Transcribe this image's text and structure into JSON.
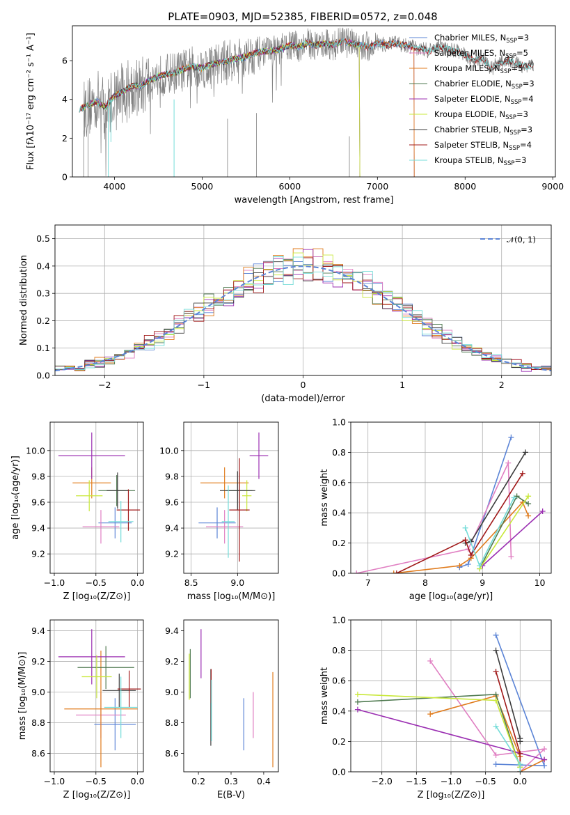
{
  "colors": {
    "Chabrier MILES": "#5b84d6",
    "Salpeter MILES": "#e07fc2",
    "Kroupa MILES": "#e07b1c",
    "Chabrier ELODIE": "#4f7a50",
    "Salpeter ELODIE": "#9b2fb2",
    "Kroupa ELODIE": "#c9e83a",
    "Chabrier STELIB": "#3c3c3c",
    "Salpeter STELIB": "#a01818",
    "Kroupa STELIB": "#74dcd8"
  },
  "chart_data": [
    {
      "type": "line",
      "title": "PLATE=0903, MJD=52385, FIBERID=0572, z=0.048",
      "xlabel": "wavelength [Angstrom, rest frame]",
      "ylabel": "Flux [fλ10⁻¹⁷ erg cm⁻² s⁻¹ A⁻¹]",
      "xlim": [
        3520,
        9030
      ],
      "ylim": [
        0,
        7.8
      ],
      "xticks": [
        4000,
        5000,
        6000,
        7000,
        8000,
        9000
      ],
      "yticks": [
        0,
        2,
        4,
        6
      ],
      "grid": false,
      "legend_position": "top-right",
      "observed_spectrum": {
        "color": "#808080",
        "x": [
          3650,
          3700,
          3750,
          3800,
          3850,
          3900,
          3950,
          4000,
          4100,
          4200,
          4300,
          4400,
          4500,
          4600,
          4700,
          4800,
          4900,
          5000,
          5100,
          5200,
          5300,
          5400,
          5500,
          5600,
          5700,
          5800,
          5900,
          6000,
          6100,
          6200,
          6300,
          6400,
          6500,
          6600,
          6700,
          6800,
          6900,
          7000,
          7100,
          7200,
          7300,
          7400,
          7500,
          7600,
          7700,
          7800,
          7900,
          8000,
          8100,
          8200,
          8300,
          8400,
          8500,
          8600,
          8700,
          8780
        ],
        "y": [
          3.5,
          3.6,
          3.8,
          3.9,
          4.0,
          3.3,
          3.9,
          4.2,
          4.4,
          4.7,
          4.6,
          5.0,
          5.2,
          5.3,
          5.4,
          5.5,
          5.7,
          5.6,
          5.8,
          5.9,
          6.0,
          6.1,
          6.2,
          6.4,
          6.5,
          6.5,
          6.6,
          6.8,
          6.7,
          6.9,
          6.8,
          6.9,
          6.8,
          7.0,
          6.9,
          6.8,
          6.7,
          6.9,
          6.8,
          6.9,
          6.8,
          6.7,
          6.6,
          6.5,
          6.7,
          6.6,
          6.5,
          6.3,
          6.0,
          6.1,
          5.6,
          5.9,
          6.0,
          5.8,
          5.7,
          5.8
        ]
      },
      "model": {
        "x": [
          3600,
          3700,
          3800,
          3900,
          4000,
          4100,
          4200,
          4300,
          4400,
          4500,
          4600,
          4700,
          4800,
          4900,
          5000,
          5100,
          5200,
          5300,
          5400,
          5500,
          5600,
          5700,
          5800,
          5900,
          6000,
          6100,
          6200,
          6300,
          6400,
          6500,
          6600,
          6700,
          6800,
          6900,
          7000,
          7100,
          7200,
          7300,
          7400
        ],
        "y": [
          3.5,
          3.7,
          3.9,
          3.6,
          4.2,
          4.4,
          4.7,
          4.7,
          5.0,
          5.2,
          5.3,
          5.4,
          5.6,
          5.7,
          5.6,
          5.8,
          5.9,
          6.0,
          6.1,
          6.2,
          6.4,
          6.5,
          6.5,
          6.6,
          6.8,
          6.7,
          6.9,
          6.8,
          6.9,
          6.8,
          7.0,
          6.9,
          6.8,
          6.7,
          6.9,
          6.8,
          6.9,
          6.8,
          6.7
        ]
      },
      "series": [
        {
          "name": "Chabrier MILES",
          "label": "Chabrier MILES, N",
          "sub": "SSP",
          "suffix": "=3",
          "end": 7420
        },
        {
          "name": "Salpeter MILES",
          "label": "Salpeter MILES, N",
          "sub": "SSP",
          "suffix": "=5",
          "end": 7420
        },
        {
          "name": "Kroupa MILES",
          "label": "Kroupa MILES, N",
          "sub": "SSP",
          "suffix": "=5",
          "end": 7420
        },
        {
          "name": "Chabrier ELODIE",
          "label": "Chabrier ELODIE, N",
          "sub": "SSP",
          "suffix": "=3",
          "end": 6800
        },
        {
          "name": "Salpeter ELODIE",
          "label": "Salpeter ELODIE, N",
          "sub": "SSP",
          "suffix": "=4",
          "end": 6800
        },
        {
          "name": "Kroupa ELODIE",
          "label": "Kroupa ELODIE, N",
          "sub": "SSP",
          "suffix": "=3",
          "end": 6800
        },
        {
          "name": "Chabrier STELIB",
          "label": "Chabrier STELIB, N",
          "sub": "SSP",
          "suffix": "=3",
          "end": 8780
        },
        {
          "name": "Salpeter STELIB",
          "label": "Salpeter STELIB, N",
          "sub": "SSP",
          "suffix": "=4",
          "end": 8780
        },
        {
          "name": "Kroupa STELIB",
          "label": "Kroupa STELIB, N",
          "sub": "SSP",
          "suffix": "=3",
          "end": 8780
        }
      ]
    },
    {
      "type": "line",
      "xlabel": "(data-model)/error",
      "ylabel": "Normed distribution",
      "xlim": [
        -2.5,
        2.5
      ],
      "ylim": [
        0,
        0.55
      ],
      "xticks": [
        -2,
        -1,
        0,
        1,
        2
      ],
      "yticks": [
        0.0,
        0.1,
        0.2,
        0.3,
        0.4,
        0.5
      ],
      "grid": true,
      "legend_position": "top-right",
      "reference_curve": {
        "name": "𝒩(0, 1)",
        "color": "#5b84d6",
        "style": "dashed"
      },
      "histogram_bins": {
        "start": -2.5,
        "width": 0.1,
        "count": 50
      }
    },
    {
      "type": "scatter",
      "xlabel": "Z [log₁₀(Z/Z⊙)]",
      "ylabel": "age  [log₁₀(age/yr)]",
      "xlim": [
        -1.05,
        0.07
      ],
      "ylim": [
        9.05,
        10.22
      ],
      "xticks": [
        -1.0,
        -0.5,
        0.0
      ],
      "yticks": [
        9.2,
        9.4,
        9.6,
        9.8,
        10.0
      ],
      "grid": true,
      "points": [
        {
          "series": "Chabrier MILES",
          "x": -0.27,
          "xerr": 0.2,
          "y": 9.44,
          "yerr": 0.12
        },
        {
          "series": "Salpeter MILES",
          "x": -0.44,
          "xerr": 0.22,
          "y": 9.41,
          "yerr": 0.13
        },
        {
          "series": "Kroupa MILES",
          "x": -0.55,
          "xerr": 0.23,
          "y": 9.75,
          "yerr": 0.12
        },
        {
          "series": "Chabrier ELODIE",
          "x": -0.25,
          "xerr": 0.22,
          "y": 9.69,
          "yerr": 0.12
        },
        {
          "series": "Salpeter ELODIE",
          "x": -0.55,
          "xerr": 0.4,
          "y": 9.96,
          "yerr": 0.18
        },
        {
          "series": "Kroupa ELODIE",
          "x": -0.58,
          "xerr": 0.16,
          "y": 9.65,
          "yerr": 0.12
        },
        {
          "series": "Chabrier STELIB",
          "x": -0.24,
          "xerr": 0.13,
          "y": 9.69,
          "yerr": 0.14
        },
        {
          "series": "Salpeter STELIB",
          "x": -0.11,
          "xerr": 0.14,
          "y": 9.54,
          "yerr": 0.16
        },
        {
          "series": "Kroupa STELIB",
          "x": -0.2,
          "xerr": 0.15,
          "y": 9.45,
          "yerr": 0.16
        }
      ]
    },
    {
      "type": "scatter",
      "xlabel": "mass [log₁₀(M/M⊙)]",
      "ylabel": "",
      "xlim": [
        8.42,
        9.44
      ],
      "ylim": [
        9.05,
        10.22
      ],
      "xticks": [
        8.5,
        9.0
      ],
      "yticks": [
        9.2,
        9.4,
        9.6,
        9.8,
        10.0
      ],
      "grid": true,
      "points": [
        {
          "series": "Chabrier MILES",
          "x": 8.78,
          "xerr": 0.2,
          "y": 9.44,
          "yerr": 0.12
        },
        {
          "series": "Salpeter MILES",
          "x": 8.86,
          "xerr": 0.2,
          "y": 9.41,
          "yerr": 0.13
        },
        {
          "series": "Kroupa MILES",
          "x": 8.86,
          "xerr": 0.26,
          "y": 9.75,
          "yerr": 0.12
        },
        {
          "series": "Chabrier ELODIE",
          "x": 9.02,
          "xerr": 0.14,
          "y": 9.69,
          "yerr": 0.14
        },
        {
          "series": "Salpeter ELODIE",
          "x": 9.23,
          "xerr": 0.1,
          "y": 9.96,
          "yerr": 0.18
        },
        {
          "series": "Kroupa ELODIE",
          "x": 9.1,
          "xerr": 0.05,
          "y": 9.65,
          "yerr": 0.12
        },
        {
          "series": "Chabrier STELIB",
          "x": 9.0,
          "xerr": 0.19,
          "y": 9.69,
          "yerr": 0.15
        },
        {
          "series": "Salpeter STELIB",
          "x": 9.02,
          "xerr": 0.11,
          "y": 9.54,
          "yerr": 0.4
        },
        {
          "series": "Kroupa STELIB",
          "x": 8.9,
          "xerr": 0.07,
          "y": 9.45,
          "yerr": 0.28
        }
      ]
    },
    {
      "type": "line",
      "xlabel": "age  [log₁₀(age/yr)]",
      "ylabel": "mass weight",
      "xlim": [
        6.7,
        10.2
      ],
      "ylim": [
        0,
        1.0
      ],
      "xticks": [
        7,
        8,
        9,
        10
      ],
      "yticks": [
        0.0,
        0.2,
        0.4,
        0.6,
        0.8,
        1.0
      ],
      "grid": true,
      "series": [
        {
          "name": "Chabrier MILES",
          "x": [
            8.6,
            8.75,
            9.5
          ],
          "y": [
            0.04,
            0.06,
            0.9
          ]
        },
        {
          "name": "Salpeter MILES",
          "x": [
            6.8,
            8.75,
            9.45,
            9.5
          ],
          "y": [
            0.0,
            0.16,
            0.73,
            0.11
          ]
        },
        {
          "name": "Kroupa MILES",
          "x": [
            7.45,
            8.6,
            8.8,
            9.7,
            9.8
          ],
          "y": [
            0.0,
            0.05,
            0.1,
            0.47,
            0.38
          ]
        },
        {
          "name": "Chabrier ELODIE",
          "x": [
            8.95,
            9.6,
            9.8
          ],
          "y": [
            0.03,
            0.51,
            0.46
          ]
        },
        {
          "name": "Salpeter ELODIE",
          "x": [
            9.0,
            10.05
          ],
          "y": [
            0.05,
            0.41
          ]
        },
        {
          "name": "Kroupa ELODIE",
          "x": [
            8.95,
            9.8
          ],
          "y": [
            0.03,
            0.51
          ]
        },
        {
          "name": "Chabrier STELIB",
          "x": [
            8.7,
            8.8,
            9.75
          ],
          "y": [
            0.2,
            0.21,
            0.8
          ]
        },
        {
          "name": "Salpeter STELIB",
          "x": [
            7.5,
            8.7,
            8.8,
            9.7
          ],
          "y": [
            0.0,
            0.22,
            0.12,
            0.66
          ]
        },
        {
          "name": "Kroupa STELIB",
          "x": [
            8.7,
            8.95,
            9.55
          ],
          "y": [
            0.3,
            0.05,
            0.5
          ]
        }
      ]
    },
    {
      "type": "scatter",
      "xlabel": "Z [log₁₀(Z/Z⊙)]",
      "ylabel": "mass [log₁₀(M/M⊙)]",
      "xlim": [
        -1.05,
        0.07
      ],
      "ylim": [
        8.48,
        9.47
      ],
      "xticks": [
        -1.0,
        -0.5,
        0.0
      ],
      "yticks": [
        8.6,
        8.8,
        9.0,
        9.2,
        9.4
      ],
      "grid": true,
      "points": [
        {
          "series": "Chabrier MILES",
          "x": -0.27,
          "xerr": 0.25,
          "y": 8.79,
          "yerr": 0.17
        },
        {
          "series": "Salpeter MILES",
          "x": -0.44,
          "xerr": 0.3,
          "y": 8.85,
          "yerr": 0.15
        },
        {
          "series": "Kroupa MILES",
          "x": -0.44,
          "xerr": 0.44,
          "y": 8.89,
          "yerr": 0.38
        },
        {
          "series": "Chabrier ELODIE",
          "x": -0.38,
          "xerr": 0.34,
          "y": 9.16,
          "yerr": 0.14
        },
        {
          "series": "Salpeter ELODIE",
          "x": -0.55,
          "xerr": 0.4,
          "y": 9.23,
          "yerr": 0.18
        },
        {
          "series": "Kroupa ELODIE",
          "x": -0.49,
          "xerr": 0.18,
          "y": 9.1,
          "yerr": 0.14
        },
        {
          "series": "Chabrier STELIB",
          "x": -0.22,
          "xerr": 0.2,
          "y": 9.01,
          "yerr": 0.11
        },
        {
          "series": "Salpeter STELIB",
          "x": -0.1,
          "xerr": 0.14,
          "y": 9.02,
          "yerr": 0.12
        },
        {
          "series": "Kroupa STELIB",
          "x": -0.2,
          "xerr": 0.2,
          "y": 8.9,
          "yerr": 0.2
        }
      ]
    },
    {
      "type": "scatter",
      "xlabel": "E(B-V)",
      "ylabel": "",
      "xlim": [
        0.155,
        0.445
      ],
      "ylim": [
        8.48,
        9.47
      ],
      "xticks": [
        0.2,
        0.3,
        0.4
      ],
      "yticks": [
        8.6,
        8.8,
        9.0,
        9.2,
        9.4
      ],
      "grid": false,
      "points": [
        {
          "series": "Chabrier MILES",
          "x": 0.339,
          "y": 8.79,
          "yerr": 0.17
        },
        {
          "series": "Salpeter MILES",
          "x": 0.368,
          "y": 8.85,
          "yerr": 0.15
        },
        {
          "series": "Kroupa MILES",
          "x": 0.428,
          "y": 8.82,
          "yerr": 0.31
        },
        {
          "series": "Chabrier ELODIE",
          "x": 0.175,
          "y": 9.12,
          "yerr": 0.16
        },
        {
          "series": "Salpeter ELODIE",
          "x": 0.208,
          "y": 9.25,
          "yerr": 0.16
        },
        {
          "series": "Kroupa ELODIE",
          "x": 0.172,
          "y": 9.1,
          "yerr": 0.15
        },
        {
          "series": "Chabrier STELIB",
          "x": 0.238,
          "y": 8.9,
          "yerr": 0.25
        },
        {
          "series": "Salpeter STELIB",
          "x": 0.239,
          "y": 9.04,
          "yerr": 0.11
        },
        {
          "series": "Kroupa STELIB",
          "x": 0.24,
          "y": 8.88,
          "yerr": 0.2
        }
      ]
    },
    {
      "type": "line",
      "xlabel": "Z [log₁₀(Z/Z⊙)]",
      "ylabel": "mass weight",
      "xlim": [
        -2.45,
        0.45
      ],
      "ylim": [
        0,
        1.0
      ],
      "xticks": [
        -2.0,
        -1.5,
        -1.0,
        -0.5,
        0.0
      ],
      "yticks": [
        0.0,
        0.2,
        0.4,
        0.6,
        0.8,
        1.0
      ],
      "grid": true,
      "series": [
        {
          "name": "Chabrier MILES",
          "x": [
            -0.35,
            0.35,
            -0.35
          ],
          "y": [
            0.9,
            0.04,
            0.05
          ]
        },
        {
          "name": "Salpeter MILES",
          "x": [
            -1.3,
            -0.35,
            0.35,
            0.0
          ],
          "y": [
            0.73,
            0.11,
            0.15,
            0.0
          ]
        },
        {
          "name": "Kroupa MILES",
          "x": [
            -1.3,
            -0.35,
            0.0,
            0.0,
            0.35
          ],
          "y": [
            0.38,
            0.5,
            0.1,
            0.0,
            0.08
          ]
        },
        {
          "name": "Chabrier ELODIE",
          "x": [
            -2.35,
            -0.35,
            0.0
          ],
          "y": [
            0.46,
            0.51,
            0.03
          ]
        },
        {
          "name": "Salpeter ELODIE",
          "x": [
            -2.35,
            0.35
          ],
          "y": [
            0.41,
            0.08
          ]
        },
        {
          "name": "Kroupa ELODIE",
          "x": [
            -2.35,
            -0.35,
            0.0
          ],
          "y": [
            0.51,
            0.47,
            0.03
          ]
        },
        {
          "name": "Chabrier STELIB",
          "x": [
            -0.35,
            0.0,
            0.0
          ],
          "y": [
            0.8,
            0.22,
            0.2
          ]
        },
        {
          "name": "Salpeter STELIB",
          "x": [
            -0.35,
            0.0,
            0.0
          ],
          "y": [
            0.66,
            0.12,
            0.0
          ]
        },
        {
          "name": "Kroupa STELIB",
          "x": [
            -0.35,
            0.0,
            0.0
          ],
          "y": [
            0.3,
            0.05,
            0.0
          ]
        }
      ]
    }
  ]
}
